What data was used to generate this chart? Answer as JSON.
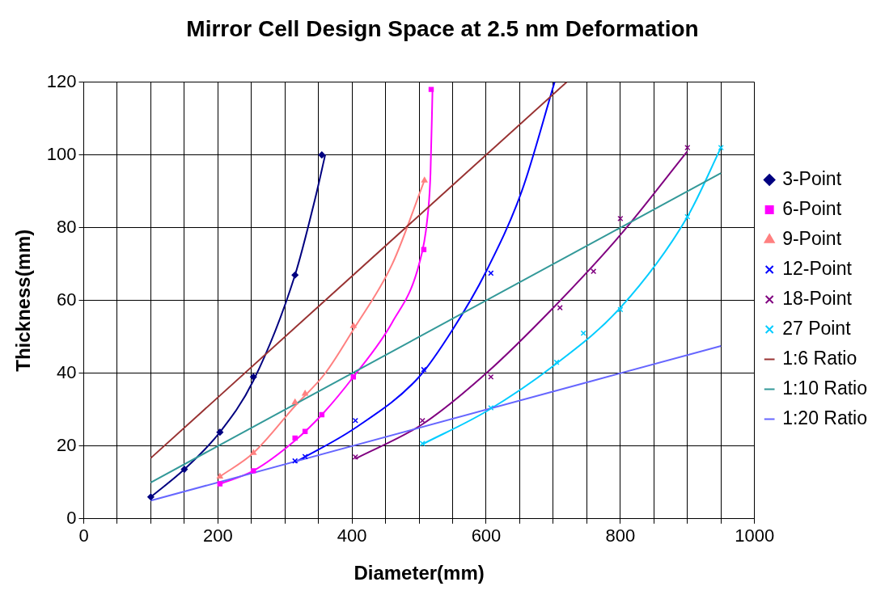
{
  "chart_data": {
    "type": "scatter",
    "title": "Mirror Cell Design Space at 2.5 nm Deformation",
    "xlabel": "Diameter(mm)",
    "ylabel": "Thickness(mm)",
    "xlim": [
      0,
      1000
    ],
    "xticks": [
      0,
      {
        "value": 50,
        "label": null
      },
      {
        "value": 100,
        "label": null
      },
      {
        "value": 150,
        "label": null
      },
      200,
      {
        "value": 250,
        "label": null
      },
      {
        "value": 300,
        "label": null
      },
      {
        "value": 350,
        "label": null
      },
      400,
      {
        "value": 450,
        "label": null
      },
      {
        "value": 500,
        "label": null
      },
      {
        "value": 550,
        "label": null
      },
      600,
      {
        "value": 650,
        "label": null
      },
      {
        "value": 700,
        "label": null
      },
      {
        "value": 750,
        "label": null
      },
      800,
      {
        "value": 850,
        "label": null
      },
      {
        "value": 900,
        "label": null
      },
      {
        "value": 950,
        "label": null
      },
      1000
    ],
    "ylim": [
      0,
      120
    ],
    "yticks": [
      0,
      20,
      40,
      60,
      80,
      100,
      120
    ],
    "grid": true,
    "legend": "right",
    "series": [
      {
        "name": "3-Point",
        "type": "scatter",
        "marker": "diamond",
        "color": "#000080",
        "x": [
          100,
          150,
          203,
          253,
          315,
          355
        ],
        "values": [
          6,
          13.6,
          23.8,
          39,
          67,
          100
        ]
      },
      {
        "name": "6-Point",
        "type": "scatter",
        "marker": "square",
        "color": "#ff00ff",
        "x": [
          203,
          253,
          315,
          330,
          355,
          402,
          507,
          518
        ],
        "values": [
          9.6,
          13.2,
          22.2,
          24,
          28.6,
          39,
          74,
          118
        ]
      },
      {
        "name": "9-Point",
        "type": "scatter",
        "marker": "triangle",
        "color": "#ff8080",
        "x": [
          203,
          253,
          315,
          330,
          402,
          508
        ],
        "values": [
          11.6,
          18.1,
          32,
          34.4,
          53,
          93
        ]
      },
      {
        "name": "12-Point",
        "type": "scatter",
        "marker": "cross",
        "color": "#0000ff",
        "x": [
          315,
          330,
          405,
          507,
          607
        ],
        "values": [
          15.9,
          17.1,
          27,
          41,
          67.5
        ]
      },
      {
        "name": "18-Point",
        "type": "scatter",
        "marker": "cross",
        "color": "#800080",
        "x": [
          405,
          505,
          607,
          710,
          760,
          800,
          900
        ],
        "values": [
          17,
          27,
          39,
          58,
          68,
          82.5,
          102
        ]
      },
      {
        "name": "27 Point",
        "type": "scatter",
        "marker": "cross",
        "color": "#00ccff",
        "x": [
          505,
          607,
          705,
          745,
          800,
          900,
          950
        ],
        "values": [
          20.7,
          30.5,
          43,
          51,
          57.5,
          83,
          102
        ]
      },
      {
        "name": "1:6 Ratio",
        "type": "line",
        "marker": "none",
        "color": "#993333",
        "x": [
          100,
          720
        ],
        "values": [
          16.7,
          120
        ]
      },
      {
        "name": "1:10 Ratio",
        "type": "line",
        "marker": "none",
        "color": "#339999",
        "x": [
          100,
          950
        ],
        "values": [
          10,
          95
        ]
      },
      {
        "name": "1:20 Ratio",
        "type": "line",
        "marker": "none",
        "color": "#6666ff",
        "x": [
          100,
          950
        ],
        "values": [
          5,
          47.5
        ]
      },
      {
        "type": "line",
        "marker": "none",
        "color": "#000080",
        "x": [
          100,
          150,
          203,
          253,
          315,
          345,
          360
        ],
        "values": [
          6,
          13.6,
          23.8,
          38,
          67,
          88,
          100
        ]
      },
      {
        "type": "line",
        "marker": "none",
        "color": "#ff00ff",
        "x": [
          203,
          253,
          315,
          355,
          402,
          460,
          500,
          512,
          517,
          520
        ],
        "values": [
          9.6,
          13.2,
          21.5,
          28.6,
          39,
          54,
          70,
          82,
          95,
          118
        ]
      },
      {
        "type": "line",
        "marker": "none",
        "color": "#ff8080",
        "x": [
          203,
          253,
          315,
          360,
          402,
          460,
          508
        ],
        "values": [
          11.6,
          18.1,
          31,
          40,
          52,
          70,
          93
        ]
      },
      {
        "type": "line",
        "marker": "none",
        "color": "#0000ff",
        "x": [
          315,
          405,
          500,
          550,
          600,
          653,
          702
        ],
        "values": [
          15.5,
          25,
          39,
          52,
          68,
          90,
          120
        ]
      },
      {
        "type": "line",
        "marker": "none",
        "color": "#800080",
        "x": [
          405,
          505,
          600,
          700,
          800,
          900
        ],
        "values": [
          16.5,
          26,
          40,
          58,
          78,
          101
        ]
      },
      {
        "type": "line",
        "marker": "none",
        "color": "#00ccff",
        "x": [
          505,
          600,
          700,
          800,
          900,
          950
        ],
        "values": [
          20.5,
          29.5,
          42,
          58,
          83,
          102
        ]
      }
    ]
  }
}
